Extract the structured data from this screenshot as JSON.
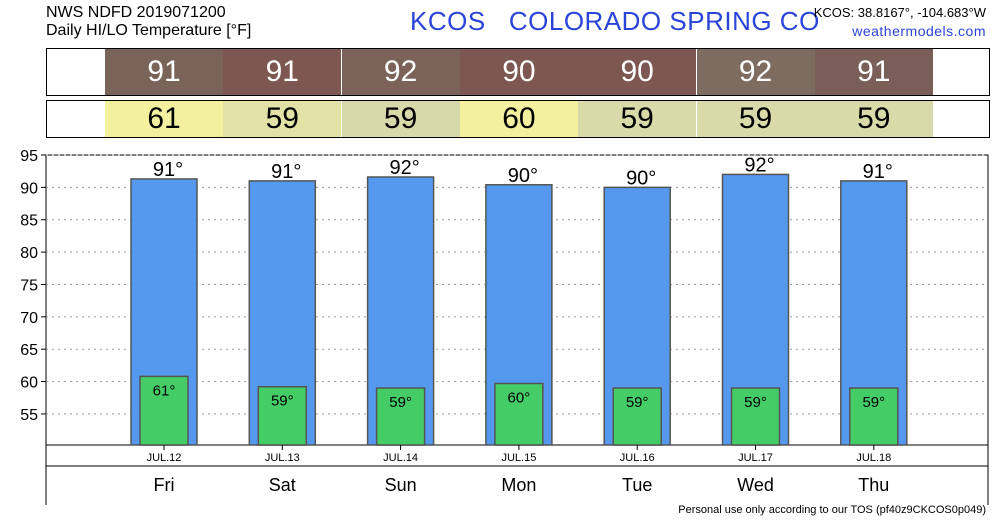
{
  "header": {
    "line1": "NWS NDFD 2019071200",
    "line2": "Daily HI/LO Temperature [°F]",
    "title": "KCOS   COLORADO SPRING CO",
    "coords": "KCOS: 38.8167°, -104.683°W",
    "site": "weathermodels.com"
  },
  "footer": "Personal use only according to our TOS (pf40z9CKCOS0p049)",
  "colors": {
    "hi_bar": "#5599ee",
    "lo_bar": "#44cc66",
    "hi_cells": [
      "#7a6459",
      "#7d5852",
      "#7b6359",
      "#7d5852",
      "#7d5852",
      "#7f6c61",
      "#7a5f59"
    ],
    "lo_cells": [
      "#f3f19f",
      "#e2e2a6",
      "#d8d9ab",
      "#f3f19f",
      "#dad9aa",
      "#dad9aa",
      "#dad9aa"
    ]
  },
  "chart_data": {
    "type": "bar",
    "categories": [
      "Fri",
      "Sat",
      "Sun",
      "Mon",
      "Tue",
      "Wed",
      "Thu"
    ],
    "dates": [
      "JUL.12",
      "JUL.13",
      "JUL.14",
      "JUL.15",
      "JUL.16",
      "JUL.17",
      "JUL.18"
    ],
    "series": [
      {
        "values": [
          91.3,
          91.0,
          91.6,
          90.4,
          90.0,
          92.0,
          91.0
        ],
        "labels": [
          "91",
          "91",
          "92",
          "90",
          "90",
          "92",
          "91"
        ]
      },
      {
        "values": [
          60.8,
          59.2,
          59.0,
          59.7,
          59.0,
          59.0,
          59.0
        ],
        "labels": [
          "61",
          "59",
          "59",
          "60",
          "59",
          "59",
          "59"
        ]
      }
    ],
    "ylim": [
      50.2,
      95
    ],
    "yticks": [
      55,
      60,
      65,
      70,
      75,
      80,
      85,
      90,
      95
    ],
    "grid": true
  }
}
